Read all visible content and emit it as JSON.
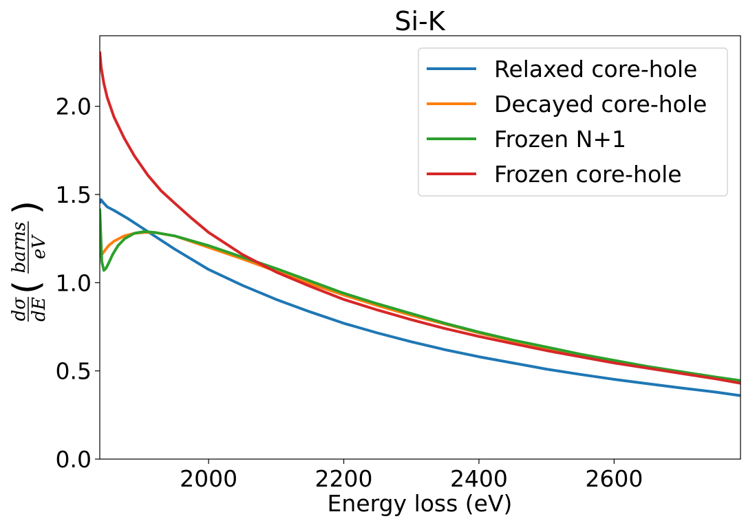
{
  "chart_data": {
    "type": "line",
    "title": "Si-K",
    "xlabel": "Energy loss (eV)",
    "ylabel": {
      "d_sigma": "dσ",
      "d_e": "dE",
      "barns": "barns",
      "ev": "eV"
    },
    "xlim": [
      1839,
      2787
    ],
    "ylim": [
      0.0,
      2.4
    ],
    "x_ticks": [
      2000,
      2200,
      2400,
      2600
    ],
    "x_tick_labels": [
      "2000",
      "2200",
      "2400",
      "2600"
    ],
    "y_ticks": [
      0.0,
      0.5,
      1.0,
      1.5,
      2.0
    ],
    "y_tick_labels": [
      "0.0",
      "0.5",
      "1.0",
      "1.5",
      "2.0"
    ],
    "legend_position": "upper right",
    "series": [
      {
        "name": "Relaxed core-hole",
        "color": "#1f77b4",
        "x": [
          1839,
          1841,
          1845,
          1850,
          1860,
          1880,
          1900,
          1950,
          2000,
          2050,
          2100,
          2150,
          2200,
          2250,
          2300,
          2350,
          2400,
          2450,
          2500,
          2550,
          2600,
          2650,
          2700,
          2750,
          2787
        ],
        "y": [
          1.45,
          1.47,
          1.45,
          1.43,
          1.41,
          1.365,
          1.315,
          1.19,
          1.075,
          0.985,
          0.905,
          0.835,
          0.77,
          0.715,
          0.665,
          0.62,
          0.58,
          0.545,
          0.51,
          0.48,
          0.452,
          0.427,
          0.403,
          0.38,
          0.36
        ]
      },
      {
        "name": "Decayed core-hole",
        "color": "#ff7f0e",
        "x": [
          1839,
          1840,
          1842,
          1846,
          1852,
          1860,
          1875,
          1890,
          1905,
          1920,
          1950,
          2000,
          2050,
          2100,
          2150,
          2200,
          2250,
          2300,
          2350,
          2400,
          2450,
          2500,
          2550,
          2600,
          2650,
          2700,
          2750,
          2787
        ],
        "y": [
          1.42,
          1.15,
          1.16,
          1.18,
          1.21,
          1.235,
          1.265,
          1.28,
          1.285,
          1.285,
          1.265,
          1.2,
          1.135,
          1.065,
          0.995,
          0.93,
          0.87,
          0.815,
          0.765,
          0.715,
          0.67,
          0.63,
          0.59,
          0.555,
          0.52,
          0.49,
          0.46,
          0.44
        ]
      },
      {
        "name": "Frozen N+1",
        "color": "#2ca02c",
        "x": [
          1839,
          1840,
          1842,
          1845,
          1848,
          1852,
          1858,
          1866,
          1876,
          1890,
          1905,
          1920,
          1950,
          2000,
          2050,
          2100,
          2150,
          2200,
          2250,
          2300,
          2350,
          2400,
          2450,
          2500,
          2550,
          2600,
          2650,
          2700,
          2750,
          2787
        ],
        "y": [
          1.42,
          1.32,
          1.12,
          1.07,
          1.08,
          1.11,
          1.16,
          1.21,
          1.25,
          1.28,
          1.29,
          1.285,
          1.265,
          1.21,
          1.145,
          1.08,
          1.01,
          0.94,
          0.88,
          0.825,
          0.77,
          0.72,
          0.675,
          0.635,
          0.595,
          0.56,
          0.525,
          0.495,
          0.465,
          0.445
        ]
      },
      {
        "name": "Frozen core-hole",
        "color": "#d62728",
        "x": [
          1839,
          1841,
          1845,
          1850,
          1860,
          1875,
          1890,
          1910,
          1930,
          1950,
          1975,
          2000,
          2050,
          2100,
          2150,
          2200,
          2250,
          2300,
          2350,
          2400,
          2450,
          2500,
          2550,
          2600,
          2650,
          2700,
          2750,
          2787
        ],
        "y": [
          2.31,
          2.22,
          2.13,
          2.05,
          1.94,
          1.82,
          1.72,
          1.61,
          1.52,
          1.45,
          1.365,
          1.285,
          1.16,
          1.06,
          0.98,
          0.905,
          0.845,
          0.79,
          0.74,
          0.695,
          0.655,
          0.615,
          0.58,
          0.545,
          0.515,
          0.485,
          0.455,
          0.43
        ]
      }
    ]
  }
}
